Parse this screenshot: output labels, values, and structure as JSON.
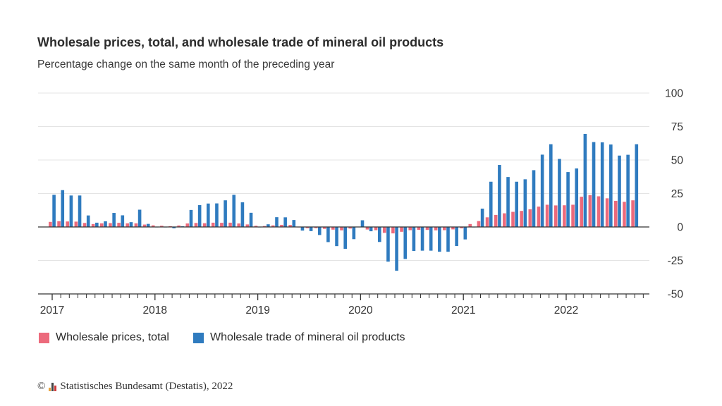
{
  "colors": {
    "wholesale": "#ec6a7c",
    "mineral": "#2f7bbf",
    "grid": "#e4e4e4",
    "axis": "#333333"
  },
  "footer": {
    "copyright_symbol": "©",
    "source": "Statistisches Bundesamt (Destatis), 2022"
  },
  "chart_data": {
    "type": "bar",
    "title": "Wholesale prices, total, and wholesale trade of mineral oil products",
    "subtitle": "Percentage change on the same month of the preceding year",
    "xlabel": "",
    "ylabel": "",
    "ylim": [
      -50,
      100
    ],
    "yticks": [
      "100",
      "75",
      "50",
      "25",
      "0",
      "-25",
      "-50"
    ],
    "year_labels": [
      "2017",
      "2018",
      "2019",
      "2020",
      "2021",
      "2022"
    ],
    "start": "2017-01",
    "categories": [
      "2017-01",
      "2017-02",
      "2017-03",
      "2017-04",
      "2017-05",
      "2017-06",
      "2017-07",
      "2017-08",
      "2017-09",
      "2017-10",
      "2017-11",
      "2017-12",
      "2018-01",
      "2018-02",
      "2018-03",
      "2018-04",
      "2018-05",
      "2018-06",
      "2018-07",
      "2018-08",
      "2018-09",
      "2018-10",
      "2018-11",
      "2018-12",
      "2019-01",
      "2019-02",
      "2019-03",
      "2019-04",
      "2019-05",
      "2019-06",
      "2019-07",
      "2019-08",
      "2019-09",
      "2019-10",
      "2019-11",
      "2019-12",
      "2020-01",
      "2020-02",
      "2020-03",
      "2020-04",
      "2020-05",
      "2020-06",
      "2020-07",
      "2020-08",
      "2020-09",
      "2020-10",
      "2020-11",
      "2020-12",
      "2021-01",
      "2021-02",
      "2021-03",
      "2021-04",
      "2021-05",
      "2021-06",
      "2021-07",
      "2021-08",
      "2021-09",
      "2021-10",
      "2021-11",
      "2021-12",
      "2022-01",
      "2022-02",
      "2022-03",
      "2022-04",
      "2022-05",
      "2022-06",
      "2022-07",
      "2022-08",
      "2022-09"
    ],
    "series": [
      {
        "name": "Wholesale prices, total",
        "values": [
          3.8,
          4.3,
          4.1,
          4.0,
          3.0,
          2.2,
          2.7,
          2.9,
          3.1,
          2.7,
          2.7,
          1.8,
          1.2,
          0.9,
          0.6,
          1.1,
          2.6,
          3.0,
          2.8,
          3.2,
          3.1,
          3.2,
          2.6,
          1.9,
          0.9,
          0.7,
          1.2,
          1.6,
          1.5,
          -0.3,
          -0.9,
          -0.9,
          -1.4,
          -2.0,
          -2.5,
          -1.2,
          0.2,
          -1.9,
          -2.4,
          -4.4,
          -4.8,
          -3.6,
          -2.4,
          -2.1,
          -2.2,
          -2.5,
          -2.4,
          -1.8,
          -1.0,
          2.2,
          4.4,
          7.2,
          9.0,
          10.2,
          11.3,
          12.0,
          13.2,
          15.2,
          16.6,
          16.1,
          16.2,
          16.6,
          22.6,
          23.8,
          22.9,
          21.4,
          19.5,
          18.8,
          19.9
        ]
      },
      {
        "name": "Wholesale trade of mineral oil products",
        "values": [
          24.0,
          27.5,
          23.5,
          23.5,
          8.6,
          3.2,
          4.2,
          10.5,
          8.7,
          3.6,
          12.9,
          2.3,
          0.0,
          0.0,
          -1.0,
          0.5,
          12.7,
          16.3,
          17.5,
          17.6,
          19.9,
          24.0,
          18.4,
          10.6,
          0.0,
          2.0,
          7.3,
          7.2,
          5.2,
          -2.7,
          -3.1,
          -6.0,
          -11.3,
          -14.3,
          -16.3,
          -9.1,
          5.0,
          -3.2,
          -11.2,
          -25.9,
          -32.7,
          -23.9,
          -17.9,
          -17.7,
          -17.7,
          -18.5,
          -18.5,
          -14.2,
          -9.3,
          0.0,
          13.7,
          33.8,
          46.3,
          37.3,
          33.8,
          35.6,
          42.4,
          54.0,
          61.8,
          50.8,
          41.0,
          43.7,
          69.5,
          63.4,
          63.2,
          61.6,
          53.3,
          53.9,
          61.8
        ]
      }
    ]
  }
}
